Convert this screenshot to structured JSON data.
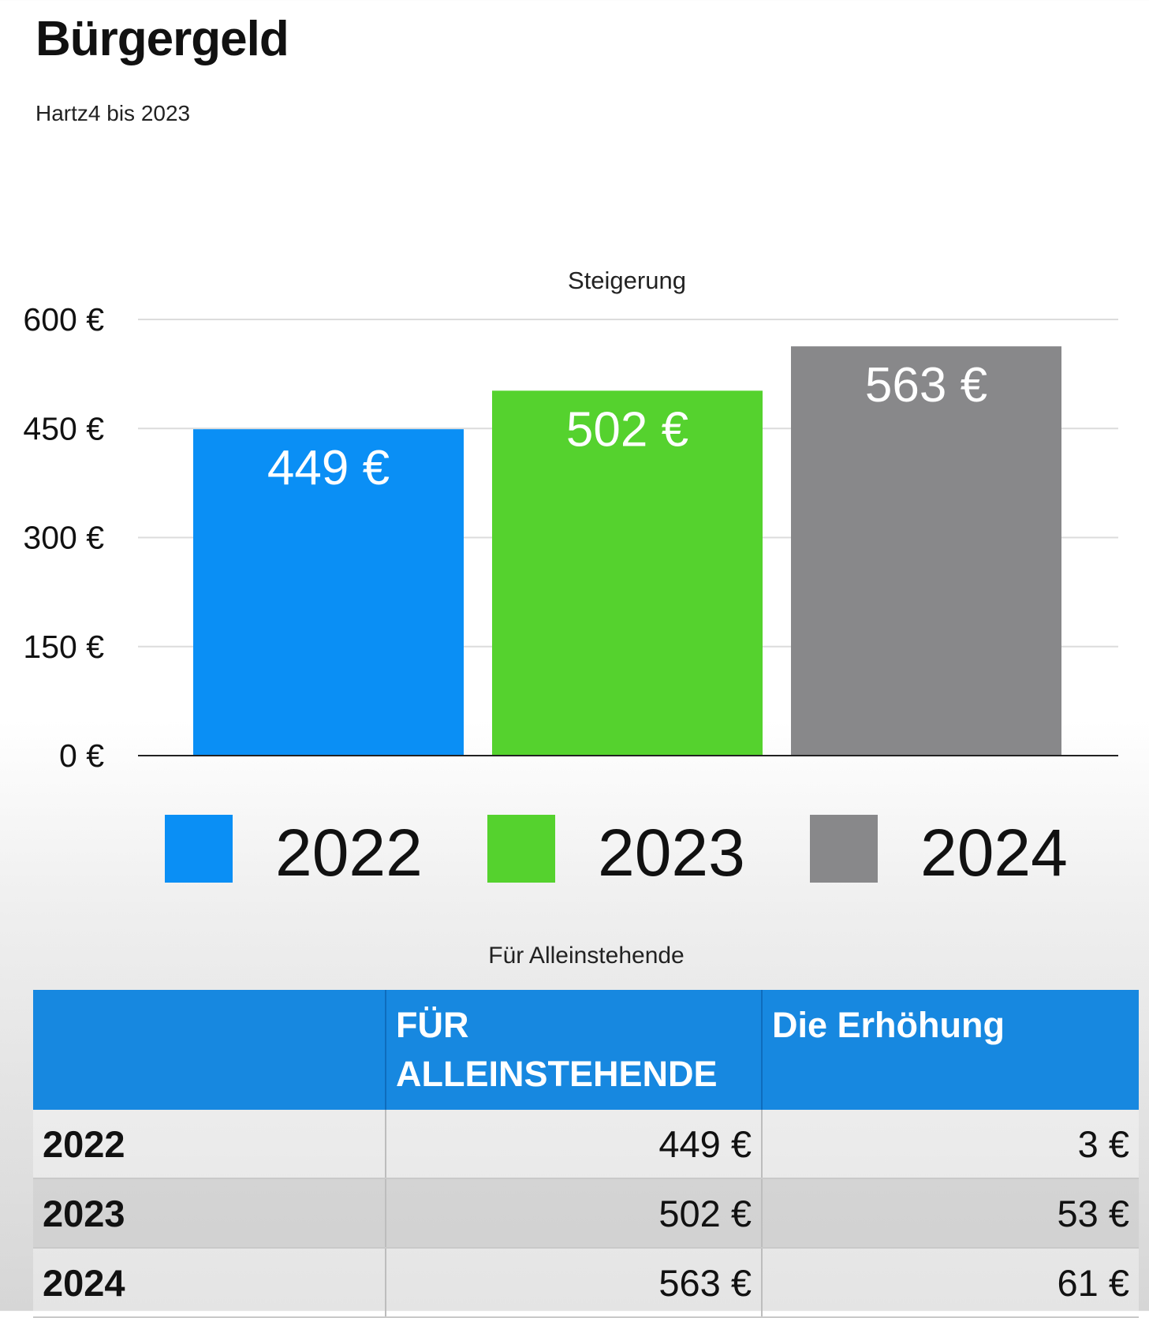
{
  "page": {
    "title": "Bürgergeld",
    "subtitle": "Hartz4 bis 2023"
  },
  "chart_data": {
    "type": "bar",
    "title": "Steigerung",
    "categories": [
      "2022",
      "2023",
      "2024"
    ],
    "values": [
      449,
      502,
      563
    ],
    "value_labels": [
      "449 €",
      "502 €",
      "563 €"
    ],
    "colors": [
      "#0a8ff5",
      "#55d22e",
      "#88888a"
    ],
    "ylim": [
      0,
      600
    ],
    "yticks": [
      0,
      150,
      300,
      450,
      600
    ],
    "ytick_labels": [
      "0 €",
      "150 €",
      "300 €",
      "450 €",
      "600 €"
    ],
    "grid": true,
    "legend": "bottom",
    "xlabel": "",
    "ylabel": ""
  },
  "table": {
    "caption": "Für Alleinstehende",
    "headers": [
      "",
      "FÜR ALLEINSTEHENDE",
      "Die Erhöhung"
    ],
    "rows": [
      [
        "2022",
        "449 €",
        "3 €"
      ],
      [
        "2023",
        "502 €",
        "53 €"
      ],
      [
        "2024",
        "563 €",
        "61 €"
      ]
    ]
  }
}
